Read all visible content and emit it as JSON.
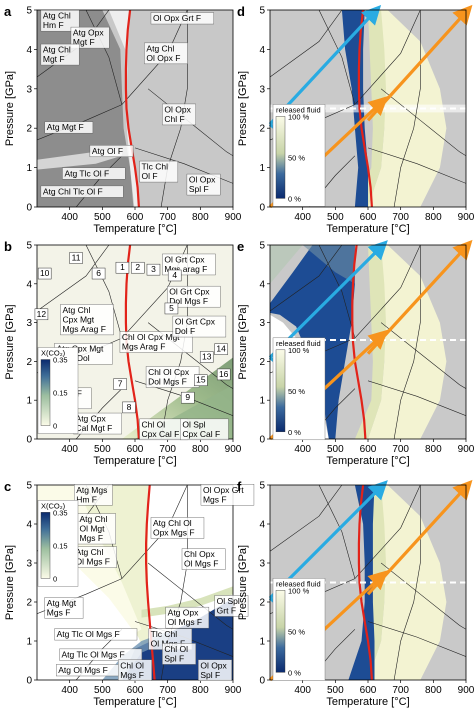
{
  "x_label": "Temperature [°C]",
  "y_label": "Pressure [GPa]",
  "released_fluid_label": "released fluid",
  "colors": {
    "red": "#e2231a",
    "cyan": "#29abe2",
    "orange": "#f7941d",
    "navy": "#0a2a6e",
    "pale": "#f0f3d6",
    "grey": "#c9c9c9",
    "darkgrey": "#8e8e8e"
  },
  "chart_data": [
    {
      "panel": "a",
      "type": "heatmap",
      "xlim": [
        300,
        900
      ],
      "ylim": [
        0,
        5
      ],
      "xticks": [
        400,
        500,
        600,
        700,
        800,
        900
      ],
      "yticks": [
        0,
        1,
        2,
        3,
        4,
        5
      ],
      "labels": [
        {
          "text": [
            "Atg Chl",
            "Hm F"
          ],
          "x": 318,
          "y": 4.78
        },
        {
          "text": [
            "Atg Opx",
            "Mgt F"
          ],
          "x": 410,
          "y": 4.35
        },
        {
          "text": [
            "Atg Chl",
            "Mgt F"
          ],
          "x": 318,
          "y": 3.92
        },
        {
          "text": [
            "Atg Chl",
            "Ol Opx F"
          ],
          "x": 635,
          "y": 3.95
        },
        {
          "text": [
            "Ol Opx Grt F"
          ],
          "x": 655,
          "y": 4.72
        },
        {
          "text": [
            "Ol Opx",
            "Chl F"
          ],
          "x": 690,
          "y": 2.4
        },
        {
          "text": [
            "Atg Mgt F"
          ],
          "x": 330,
          "y": 1.95
        },
        {
          "text": [
            "Atg Ol F"
          ],
          "x": 468,
          "y": 1.35
        },
        {
          "text": [
            "Tlc Chl",
            "Ol F"
          ],
          "x": 620,
          "y": 0.95
        },
        {
          "text": [
            "Atg Tlc Ol F"
          ],
          "x": 384,
          "y": 0.78
        },
        {
          "text": [
            "Atg Chl Tlc Ol F"
          ],
          "x": 318,
          "y": 0.32
        },
        {
          "text": [
            "Ol Opx",
            "Spl F"
          ],
          "x": 765,
          "y": 0.62
        }
      ]
    },
    {
      "panel": "b",
      "type": "heatmap",
      "xlim": [
        300,
        900
      ],
      "ylim": [
        0,
        5
      ],
      "xticks": [
        400,
        500,
        600,
        700,
        800,
        900
      ],
      "yticks": [
        0,
        1,
        2,
        3,
        4,
        5
      ],
      "colorbar": {
        "title": "X(CO₂)",
        "ticks": [
          "0.35",
          "0.15",
          "0"
        ]
      },
      "labels": [
        {
          "text": [
            "Ol Grt Cpx",
            "Mgs arag F"
          ],
          "x": 690,
          "y": 4.55
        },
        {
          "text": [
            "Ol Grt Cpx",
            "Dol Mgs F"
          ],
          "x": 705,
          "y": 3.72
        },
        {
          "text": [
            "Atg Chl",
            "Cpx Mgt",
            "Mgs Arag F"
          ],
          "x": 378,
          "y": 3.25
        },
        {
          "text": [
            "Chl Ol Cpx Mgt",
            "Mgs Arag F"
          ],
          "x": 560,
          "y": 2.55
        },
        {
          "text": [
            "Ol Grt Cpx",
            "Dol F"
          ],
          "x": 722,
          "y": 2.95
        },
        {
          "text": [
            "Atg Cpx Mgt",
            "Arag Dol"
          ],
          "x": 360,
          "y": 2.25
        },
        {
          "text": [
            "Chl Ol Cpx",
            "Dol Mgs F"
          ],
          "x": 640,
          "y": 1.65
        },
        {
          "text": [
            "Atg Mgt F",
            "Arag Dol"
          ],
          "x": 325,
          "y": 1.1
        },
        {
          "text": [
            "Atg Cpx",
            "Cal Mgt F"
          ],
          "x": 418,
          "y": 0.45
        },
        {
          "text": [
            "Chl Ol",
            "Cpx Cal F"
          ],
          "x": 620,
          "y": 0.3
        },
        {
          "text": [
            "Ol Spl",
            "Cpx Cal F"
          ],
          "x": 745,
          "y": 0.3
        }
      ],
      "numbers": [
        {
          "text": "1",
          "x": 560,
          "y": 4.35
        },
        {
          "text": "2",
          "x": 607,
          "y": 4.35
        },
        {
          "text": "3",
          "x": 655,
          "y": 4.3
        },
        {
          "text": "4",
          "x": 720,
          "y": 4.15
        },
        {
          "text": "5",
          "x": 710,
          "y": 3.3
        },
        {
          "text": "6",
          "x": 487,
          "y": 4.2
        },
        {
          "text": "7",
          "x": 553,
          "y": 1.35
        },
        {
          "text": "8",
          "x": 580,
          "y": 0.75
        },
        {
          "text": "9",
          "x": 760,
          "y": 1.0
        },
        {
          "text": "10",
          "x": 322,
          "y": 4.2
        },
        {
          "text": "11",
          "x": 418,
          "y": 4.6
        },
        {
          "text": "12",
          "x": 312,
          "y": 3.15
        },
        {
          "text": "13",
          "x": 818,
          "y": 2.05
        },
        {
          "text": "14",
          "x": 862,
          "y": 2.25
        },
        {
          "text": "15",
          "x": 800,
          "y": 1.45
        },
        {
          "text": "16",
          "x": 870,
          "y": 1.6
        }
      ]
    },
    {
      "panel": "c",
      "type": "heatmap",
      "xlim": [
        300,
        900
      ],
      "ylim": [
        0,
        5
      ],
      "xticks": [
        400,
        500,
        600,
        700,
        800,
        900
      ],
      "yticks": [
        0,
        1,
        2,
        3,
        4,
        5
      ],
      "colorbar": {
        "title": "X(CO₂)",
        "ticks": [
          "0.35",
          "0.15",
          "0"
        ]
      },
      "labels": [
        {
          "text": [
            "Atg Mgs",
            "Hm F"
          ],
          "x": 420,
          "y": 4.8
        },
        {
          "text": [
            "Ol Opx Grt",
            "Mgs F"
          ],
          "x": 808,
          "y": 4.8
        },
        {
          "text": [
            "Atg Chl",
            "Ol Mgt",
            "Mgs F"
          ],
          "x": 430,
          "y": 4.05
        },
        {
          "text": [
            "Atg Chl Ol",
            "Opx Mgs F"
          ],
          "x": 655,
          "y": 3.95
        },
        {
          "text": [
            "Atg Chl",
            "Ol Mgs F"
          ],
          "x": 418,
          "y": 3.2
        },
        {
          "text": [
            "Chl Opx",
            "Ol Mgs F"
          ],
          "x": 750,
          "y": 3.15
        },
        {
          "text": [
            "Ol Spl",
            "Grt F"
          ],
          "x": 850,
          "y": 1.95
        },
        {
          "text": [
            "Atg Mgt",
            "Mgs F"
          ],
          "x": 330,
          "y": 1.9
        },
        {
          "text": [
            "Atg Opx",
            "Ol Mgs F"
          ],
          "x": 700,
          "y": 1.65
        },
        {
          "text": [
            "Tlc Chl",
            "Ol Mgs F"
          ],
          "x": 648,
          "y": 1.1
        },
        {
          "text": [
            "Atg Tlc Ol Mgs F"
          ],
          "x": 360,
          "y": 1.1
        },
        {
          "text": [
            "Atg Tlc Ol Mgs F"
          ],
          "x": 375,
          "y": 0.58
        },
        {
          "text": [
            "Chl Ol",
            "Spl F"
          ],
          "x": 690,
          "y": 0.72
        },
        {
          "text": [
            "Atg Ol Mgs F"
          ],
          "x": 365,
          "y": 0.18
        },
        {
          "text": [
            "Chl Ol",
            "Mgs F"
          ],
          "x": 555,
          "y": 0.3
        },
        {
          "text": [
            "Ol Opx",
            "Spl F"
          ],
          "x": 800,
          "y": 0.3
        }
      ]
    },
    {
      "panel": "d",
      "type": "heatmap",
      "xlim": [
        300,
        900
      ],
      "ylim": [
        0,
        5
      ],
      "xticks": [
        400,
        500,
        600,
        700,
        800,
        900
      ],
      "yticks": [
        0,
        1,
        2,
        3,
        4,
        5
      ],
      "colorbar": {
        "title": "released fluid",
        "ticks": [
          "100 %",
          "50 %",
          "0 %"
        ]
      },
      "dashed_line_P": 2.5,
      "cyan_path": [
        [
          300,
          2.1
        ],
        [
          620,
          4.95
        ]
      ],
      "orange_paths": [
        [
          [
            300,
            0
          ],
          [
            640,
            2.65
          ]
        ],
        [
          [
            600,
            2.2
          ],
          [
            900,
            4.95
          ]
        ]
      ]
    },
    {
      "panel": "e",
      "type": "heatmap",
      "xlim": [
        300,
        900
      ],
      "ylim": [
        0,
        5
      ],
      "xticks": [
        400,
        500,
        600,
        700,
        800,
        900
      ],
      "yticks": [
        0,
        1,
        2,
        3,
        4,
        5
      ],
      "colorbar": {
        "title": "released fluid",
        "ticks": [
          "100 %",
          "50 %",
          "0 %"
        ]
      },
      "dashed_line_P": 2.55,
      "cyan_path": [
        [
          300,
          2.1
        ],
        [
          640,
          4.95
        ]
      ],
      "orange_paths": [
        [
          [
            300,
            0
          ],
          [
            640,
            2.65
          ]
        ],
        [
          [
            600,
            2.2
          ],
          [
            900,
            4.95
          ]
        ]
      ]
    },
    {
      "panel": "f",
      "type": "heatmap",
      "xlim": [
        300,
        900
      ],
      "ylim": [
        0,
        5
      ],
      "xticks": [
        400,
        500,
        600,
        700,
        800,
        900
      ],
      "yticks": [
        0,
        1,
        2,
        3,
        4,
        5
      ],
      "colorbar": {
        "title": "released fluid",
        "ticks": [
          "100 %",
          "50 %",
          "0 %"
        ]
      },
      "dashed_line_P": 2.5,
      "cyan_path": [
        [
          300,
          2.1
        ],
        [
          640,
          4.95
        ]
      ],
      "orange_paths": [
        [
          [
            300,
            0
          ],
          [
            640,
            2.65
          ]
        ],
        [
          [
            600,
            2.2
          ],
          [
            900,
            4.95
          ]
        ]
      ]
    }
  ]
}
